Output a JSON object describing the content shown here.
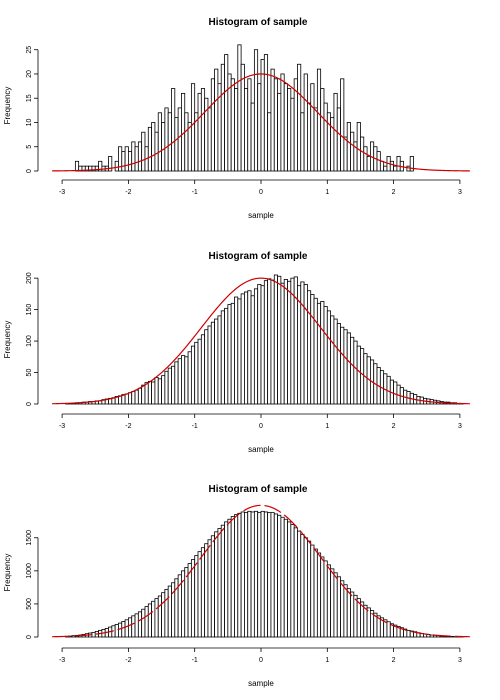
{
  "colors": {
    "curve": "#cc0000",
    "bar_fill": "#ffffff",
    "bar_stroke": "#000000"
  },
  "chart_data": [
    {
      "type": "bar",
      "title": "Histogram of sample",
      "xlabel": "sample",
      "ylabel": "Frequency",
      "xlim": [
        -3.15,
        3.15
      ],
      "ylim": [
        0,
        27
      ],
      "xticks": [
        -3,
        -2,
        -1,
        0,
        1,
        2,
        3
      ],
      "yticks": [
        0,
        5,
        10,
        15,
        20,
        25
      ],
      "bin_start": -2.8,
      "bin_width": 0.05,
      "values": [
        2,
        1,
        1,
        1,
        1,
        1,
        1,
        2,
        1,
        1,
        3,
        0,
        2,
        5,
        4,
        5,
        4,
        6,
        5,
        6,
        8,
        5,
        9,
        10,
        8,
        12,
        10,
        13,
        12,
        17,
        11,
        13,
        16,
        12,
        10,
        18,
        12,
        16,
        17,
        15,
        13,
        19,
        21,
        18,
        22,
        24,
        20,
        19,
        17,
        26,
        22,
        17,
        19,
        14,
        25,
        18,
        23,
        24,
        12,
        21,
        19,
        16,
        20,
        18,
        17,
        15,
        19,
        22,
        12,
        20,
        14,
        18,
        13,
        21,
        17,
        14,
        12,
        11,
        16,
        13,
        19,
        7,
        10,
        8,
        6,
        10,
        7,
        5,
        3,
        6,
        5,
        4,
        2,
        1,
        3,
        2,
        1,
        3,
        2,
        0,
        1,
        3
      ],
      "curve": {
        "mean": 0,
        "sd": 0.85,
        "peak": 20,
        "style": "solid"
      }
    },
    {
      "type": "bar",
      "title": "Histogram of sample",
      "xlabel": "sample",
      "ylabel": "Frequency",
      "xlim": [
        -3.15,
        3.15
      ],
      "ylim": [
        0,
        205
      ],
      "xticks": [
        -3,
        -2,
        -1,
        0,
        1,
        2,
        3
      ],
      "yticks": [
        0,
        50,
        100,
        150,
        200
      ],
      "bin_start": -2.95,
      "bin_width": 0.05,
      "values": [
        1,
        1,
        1,
        2,
        2,
        3,
        3,
        4,
        4,
        5,
        5,
        7,
        8,
        9,
        10,
        12,
        13,
        15,
        16,
        18,
        20,
        22,
        25,
        30,
        34,
        36,
        35,
        42,
        40,
        45,
        52,
        57,
        60,
        67,
        72,
        77,
        75,
        83,
        92,
        98,
        103,
        110,
        118,
        124,
        130,
        135,
        140,
        148,
        152,
        158,
        160,
        170,
        167,
        175,
        178,
        180,
        172,
        183,
        190,
        188,
        196,
        199,
        197,
        205,
        203,
        192,
        198,
        195,
        200,
        202,
        188,
        194,
        190,
        180,
        174,
        168,
        160,
        163,
        155,
        148,
        140,
        135,
        128,
        122,
        118,
        113,
        106,
        100,
        92,
        88,
        80,
        75,
        70,
        64,
        58,
        53,
        48,
        44,
        38,
        35,
        30,
        26,
        22,
        20,
        17,
        15,
        12,
        11,
        9,
        8,
        7,
        6,
        5,
        4,
        3,
        3,
        2,
        2,
        1,
        1
      ],
      "curve": {
        "mean": 0,
        "sd": 0.9,
        "peak": 200,
        "style": "solid"
      }
    },
    {
      "type": "bar",
      "title": "Histogram of sample",
      "xlabel": "sample",
      "ylabel": "Frequency",
      "xlim": [
        -3.15,
        3.15
      ],
      "ylim": [
        0,
        1950
      ],
      "xticks": [
        -3,
        -2,
        -1,
        0,
        1,
        2,
        3
      ],
      "yticks": [
        0,
        500,
        1000,
        1500
      ],
      "bin_start": -2.95,
      "bin_width": 0.05,
      "values": [
        10,
        15,
        20,
        25,
        30,
        40,
        50,
        60,
        70,
        85,
        100,
        115,
        130,
        150,
        170,
        190,
        210,
        235,
        260,
        290,
        320,
        350,
        380,
        420,
        460,
        500,
        540,
        580,
        620,
        670,
        720,
        770,
        820,
        880,
        940,
        1000,
        1050,
        1110,
        1170,
        1230,
        1290,
        1350,
        1410,
        1470,
        1530,
        1590,
        1640,
        1690,
        1740,
        1780,
        1820,
        1850,
        1870,
        1890,
        1880,
        1900,
        1890,
        1900,
        1880,
        1900,
        1890,
        1880,
        1880,
        1860,
        1840,
        1810,
        1780,
        1740,
        1700,
        1650,
        1600,
        1550,
        1500,
        1450,
        1390,
        1330,
        1270,
        1210,
        1150,
        1090,
        1030,
        970,
        910,
        850,
        790,
        730,
        680,
        630,
        580,
        530,
        480,
        440,
        400,
        360,
        320,
        290,
        260,
        230,
        200,
        180,
        160,
        140,
        120,
        100,
        90,
        80,
        65,
        55,
        45,
        38,
        30,
        25,
        20,
        15,
        12,
        10,
        8,
        6,
        4,
        3
      ],
      "curve": {
        "mean": 0,
        "sd": 0.9,
        "peak": 1990,
        "style": "dashed"
      }
    }
  ]
}
